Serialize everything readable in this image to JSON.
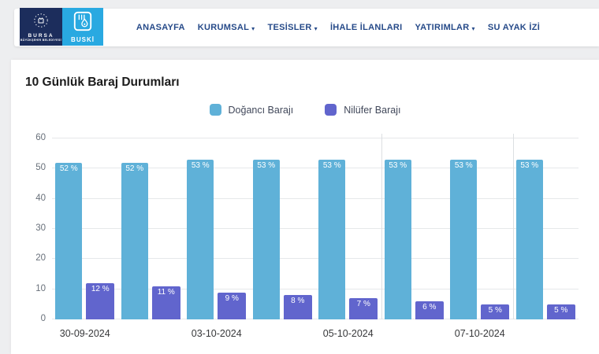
{
  "header": {
    "logo": {
      "bursa_line1": "BURSA",
      "bursa_line2": "BÜYÜKŞEHİR BELEDİYESİ",
      "buski": "BUSKİ"
    },
    "nav": [
      {
        "label": "ANASAYFA",
        "dropdown": false
      },
      {
        "label": "KURUMSAL",
        "dropdown": true
      },
      {
        "label": "TESİSLER",
        "dropdown": true
      },
      {
        "label": "İHALE İLANLARI",
        "dropdown": false
      },
      {
        "label": "YATIRIMLAR",
        "dropdown": true
      },
      {
        "label": "SU AYAK İZİ",
        "dropdown": false
      }
    ]
  },
  "page": {
    "title": "10 Günlük Baraj Durumları"
  },
  "colors": {
    "dogancı_bar": "#5fb1d8",
    "nilufer_bar": "#6165cd",
    "nav_text": "#264a89",
    "bursa_logo_bg": "#1c2d5c",
    "buski_logo_bg": "#29a9e1"
  },
  "chart_data": {
    "type": "bar",
    "title": "10 Günlük Baraj Durumları",
    "categories": [
      "30-09-2024",
      "",
      "03-10-2024",
      "",
      "05-10-2024",
      "",
      "07-10-2024",
      ""
    ],
    "series": [
      {
        "name": "Doğancı Barajı",
        "color": "#5fb1d8",
        "values": [
          52,
          52,
          53,
          53,
          53,
          53,
          53,
          53
        ],
        "labels": [
          "52 %",
          "52 %",
          "53 %",
          "53 %",
          "53 %",
          "53 %",
          "53 %",
          "53 %"
        ]
      },
      {
        "name": "Nilüfer Barajı",
        "color": "#6165cd",
        "values": [
          12,
          11,
          9,
          8,
          7,
          6,
          5,
          5
        ],
        "labels": [
          "12 %",
          "11 %",
          "9 %",
          "8 %",
          "7 %",
          "6 %",
          "5 %",
          "5 %"
        ]
      }
    ],
    "x_tick_labels": [
      {
        "index": 0,
        "label": "30-09-2024"
      },
      {
        "index": 2,
        "label": "03-10-2024"
      },
      {
        "index": 4,
        "label": "05-10-2024"
      },
      {
        "index": 6,
        "label": "07-10-2024"
      }
    ],
    "y_ticks": [
      0,
      10,
      20,
      30,
      40,
      50,
      60
    ],
    "ylim": [
      0,
      60
    ],
    "ylabel": "",
    "xlabel": "",
    "grid": true,
    "legend_position": "top",
    "vertical_gridlines_at_group_boundaries": [
      5,
      7
    ]
  }
}
